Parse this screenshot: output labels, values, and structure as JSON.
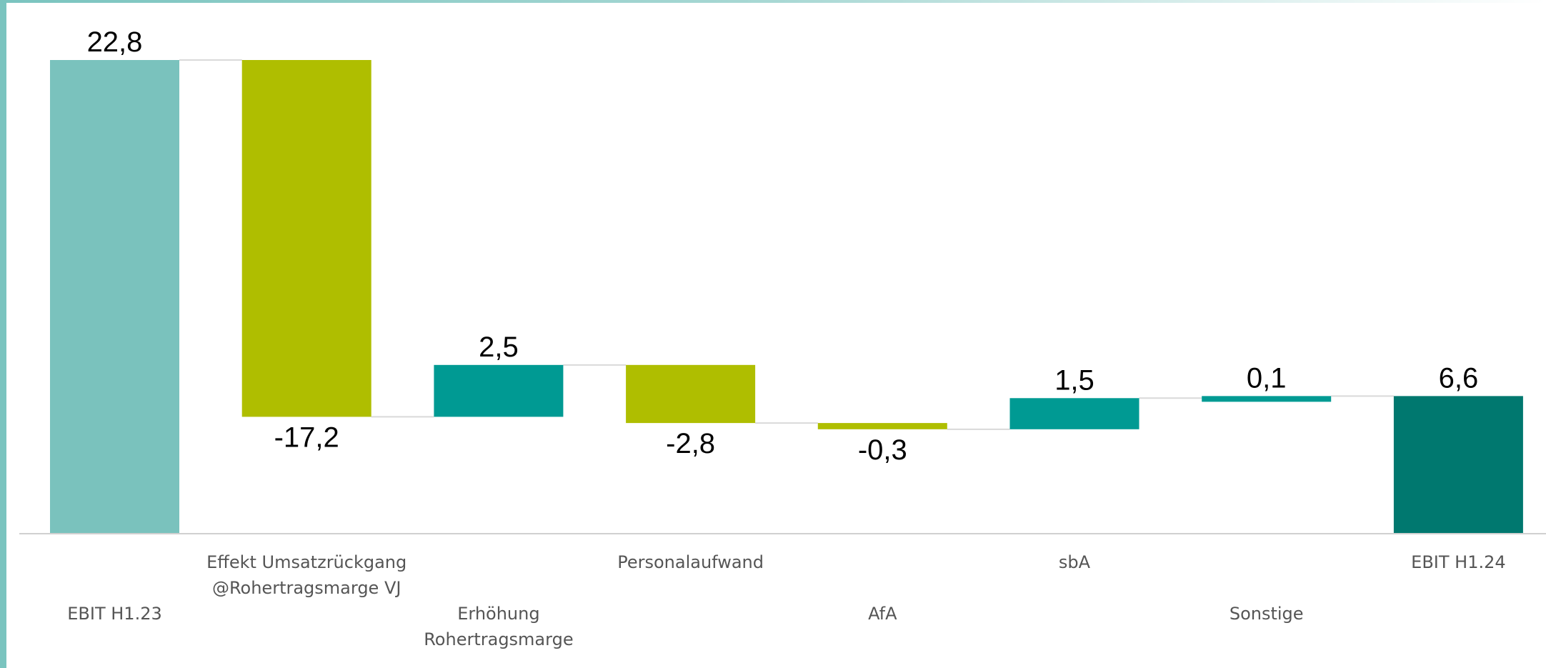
{
  "chart_data": {
    "type": "bar",
    "subtype": "waterfall",
    "title": "",
    "xlabel": "",
    "ylabel": "",
    "ylim": [
      0,
      24
    ],
    "grid": false,
    "legend": "none",
    "categories": [
      [
        "EBIT H1.23"
      ],
      [
        "Effekt Umsatzrückgang",
        "@Rohertragsmarge VJ"
      ],
      [
        "Erhöhung",
        "Rohertragsmarge"
      ],
      [
        "Personalaufwand"
      ],
      [
        "AfA"
      ],
      [
        "sbA"
      ],
      [
        "Sonstige"
      ],
      [
        "EBIT H1.24"
      ]
    ],
    "values": [
      22.8,
      -17.2,
      2.5,
      -2.8,
      -0.3,
      1.5,
      0.1,
      6.6
    ],
    "value_labels": [
      "22,8",
      "-17,2",
      "2,5",
      "-2,8",
      "-0,3",
      "1,5",
      "0,1",
      "6,6"
    ],
    "bar_kinds": [
      "total-start",
      "decrease",
      "increase",
      "decrease",
      "decrease",
      "increase",
      "increase",
      "total-end"
    ],
    "colors": {
      "total-start": "#7ac2bd",
      "decrease": "#afbe00",
      "increase": "#009a93",
      "total-end": "#00786f",
      "connector": "#d9d9d9",
      "axis": "#d0d0d0",
      "accent": "#7ac4bf"
    }
  }
}
